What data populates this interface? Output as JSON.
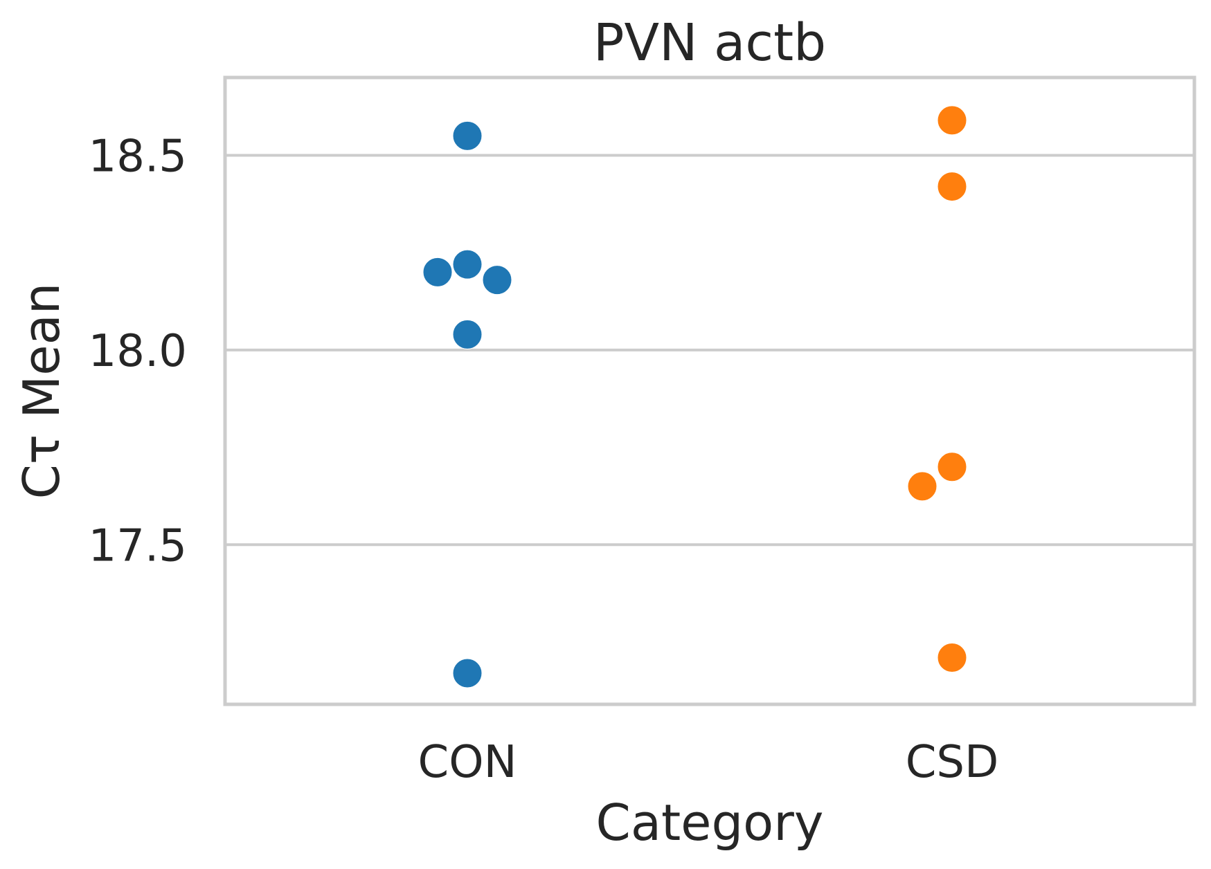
{
  "chart_data": {
    "type": "scatter",
    "title": "PVN actb",
    "xlabel": "Category",
    "ylabel": "Cτ Mean",
    "categories": [
      "CON",
      "CSD"
    ],
    "ylim": [
      17.09,
      18.7
    ],
    "yticks": [
      17.5,
      18.0,
      18.5
    ],
    "ytick_labels": [
      "17.5",
      "18.0",
      "18.5"
    ],
    "grid": "horizontal",
    "series": [
      {
        "category": "CON",
        "color": "#1f77b4",
        "values": [
          18.55,
          18.2,
          18.18,
          18.22,
          18.04,
          17.17
        ]
      },
      {
        "category": "CSD",
        "color": "#ff7f0e",
        "values": [
          18.59,
          18.42,
          17.7,
          17.65,
          17.21
        ]
      }
    ]
  }
}
